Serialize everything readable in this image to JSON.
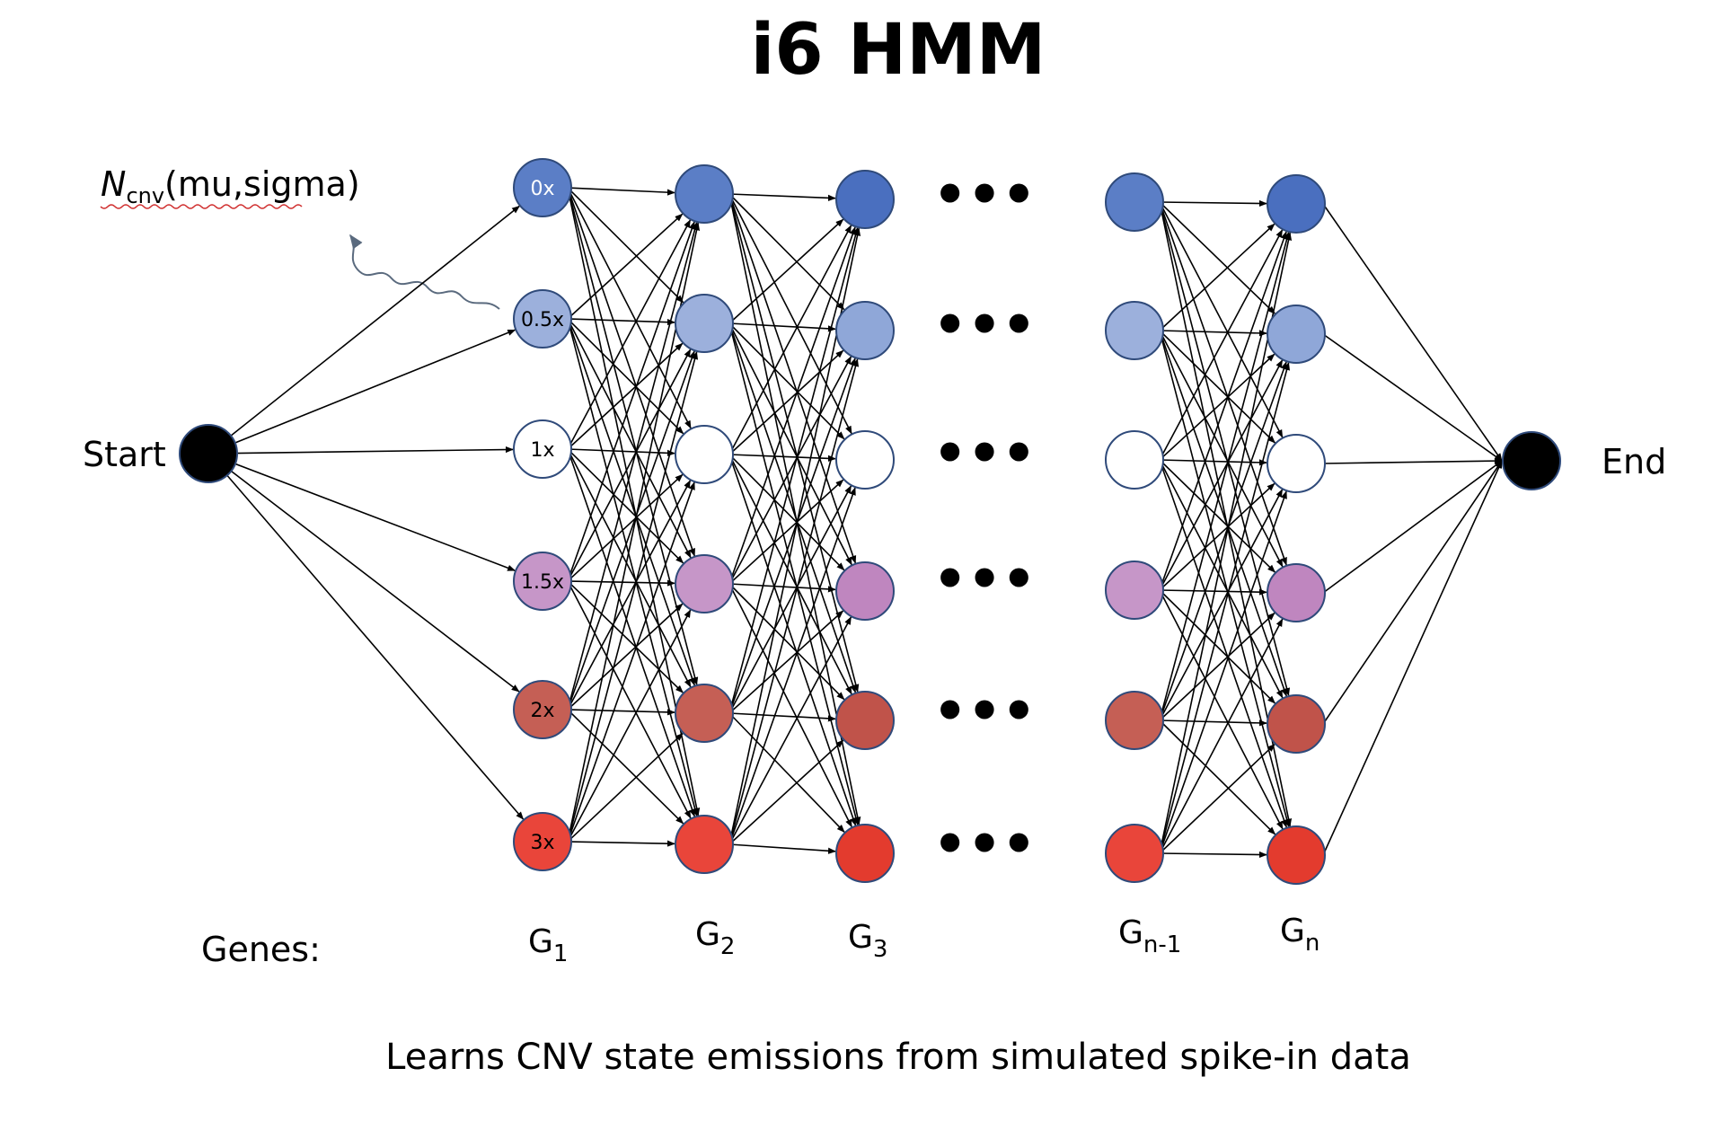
{
  "title": "i6 HMM",
  "distribution": {
    "symbol": "N",
    "subscript": "cnv",
    "params": "(mu,sigma)"
  },
  "start_label": "Start",
  "end_label": "End",
  "genes_label": "Genes:",
  "ellipsis": "•••",
  "states": [
    {
      "label": "0x",
      "color": "#5b7ec6",
      "label_color": "#ffffff"
    },
    {
      "label": "0.5x",
      "color": "#9cb0dc",
      "label_color": "#000000"
    },
    {
      "label": "1x",
      "color": "#ffffff",
      "label_color": "#000000"
    },
    {
      "label": "1.5x",
      "color": "#c696c8",
      "label_color": "#000000"
    },
    {
      "label": "2x",
      "color": "#c55f55",
      "label_color": "#000000"
    },
    {
      "label": "3x",
      "color": "#e9453a",
      "label_color": "#000000"
    }
  ],
  "columns": [
    {
      "gene": "G",
      "sub": "1",
      "colors": [
        "#5b7ec6",
        "#9cb0dc",
        "#ffffff",
        "#c696c8",
        "#c55f55",
        "#e9453a"
      ]
    },
    {
      "gene": "G",
      "sub": "2",
      "colors": [
        "#5b7ec6",
        "#9cb0dc",
        "#ffffff",
        "#c696c8",
        "#c55f55",
        "#e9453a"
      ]
    },
    {
      "gene": "G",
      "sub": "3",
      "colors": [
        "#4a6fbf",
        "#8fa7d8",
        "#ffffff",
        "#bf86bf",
        "#c0534a",
        "#e33b2e"
      ]
    },
    {
      "gene": "G",
      "sub": "n-1",
      "colors": [
        "#5b7ec6",
        "#9cb0dc",
        "#ffffff",
        "#c696c8",
        "#c55f55",
        "#e9453a"
      ]
    },
    {
      "gene": "G",
      "sub": "n",
      "colors": [
        "#4a6fbf",
        "#8fa7d8",
        "#ffffff",
        "#bf86bf",
        "#c0534a",
        "#e33b2e"
      ]
    }
  ],
  "caption": "Learns CNV state emissions from simulated spike-in data"
}
